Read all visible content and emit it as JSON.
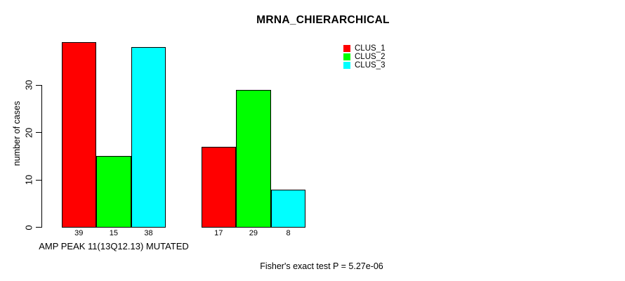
{
  "chart_data": {
    "type": "bar",
    "title": "MRNA_CHIERARCHICAL",
    "ylabel": "number of cases",
    "xlabel": "AMP PEAK 11(13Q12.13) MUTATED",
    "annotation": "Fisher's exact test P = 5.27e-06",
    "categories": [
      "AMP PEAK 11(13Q12.13) MUTATED",
      ""
    ],
    "series": [
      {
        "name": "CLUS_1",
        "color": "#ff0000",
        "values": [
          39,
          17
        ]
      },
      {
        "name": "CLUS_2",
        "color": "#00ff00",
        "values": [
          15,
          29
        ]
      },
      {
        "name": "CLUS_3",
        "color": "#00ffff",
        "values": [
          38,
          8
        ]
      }
    ],
    "bar_value_labels": [
      [
        39,
        15,
        38
      ],
      [
        17,
        29,
        8
      ]
    ],
    "yticks": [
      0,
      10,
      20,
      30
    ],
    "ylim": [
      0,
      39
    ],
    "grid": false,
    "legend_position": "top-right",
    "background_color": "#ffffff",
    "text_color": "#000000"
  }
}
